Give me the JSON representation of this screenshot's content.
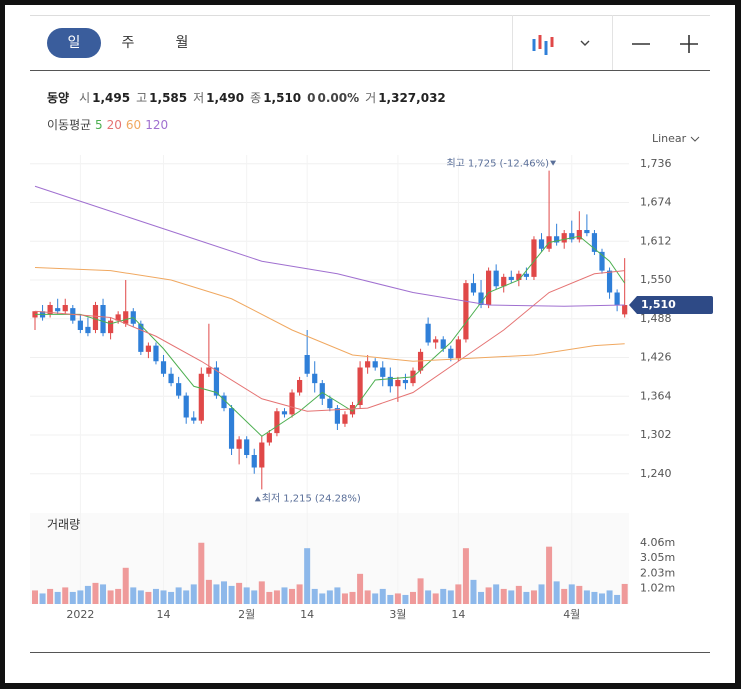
{
  "toolbar": {
    "tabs": [
      "일",
      "주",
      "월"
    ],
    "selected": 0
  },
  "info": {
    "name": "동양",
    "items": [
      {
        "label": "시",
        "value": "1,495"
      },
      {
        "label": "고",
        "value": "1,585"
      },
      {
        "label": "저",
        "value": "1,490"
      },
      {
        "label": "종",
        "value": "1,510"
      }
    ],
    "change": "0",
    "change_pct": "0.00%",
    "volume_label": "거",
    "volume": "1,327,032"
  },
  "ma_legend": "이동평균",
  "chart_data": {
    "type": "candlestick",
    "scale": "Linear",
    "volume_title": "거래량",
    "open": [
      1490,
      1500,
      1495,
      1505,
      1500,
      1505,
      1485,
      1475,
      1470,
      1510,
      1465,
      1485,
      1480,
      1500,
      1480,
      1435,
      1445,
      1420,
      1400,
      1385,
      1365,
      1330,
      1325,
      1400,
      1410,
      1365,
      1345,
      1280,
      1295,
      1270,
      1250,
      1290,
      1305,
      1340,
      1335,
      1370,
      1430,
      1400,
      1385,
      1360,
      1345,
      1320,
      1335,
      1350,
      1410,
      1420,
      1410,
      1395,
      1380,
      1390,
      1385,
      1405,
      1480,
      1450,
      1455,
      1440,
      1425,
      1455,
      1545,
      1530,
      1510,
      1565,
      1540,
      1555,
      1550,
      1560,
      1555,
      1615,
      1600,
      1620,
      1610,
      1625,
      1615,
      1630,
      1625,
      1595,
      1565,
      1530,
      1495
    ],
    "high": [
      1500,
      1510,
      1515,
      1520,
      1520,
      1510,
      1495,
      1490,
      1515,
      1520,
      1490,
      1500,
      1550,
      1505,
      1485,
      1450,
      1450,
      1430,
      1410,
      1395,
      1370,
      1340,
      1410,
      1480,
      1420,
      1370,
      1350,
      1300,
      1300,
      1280,
      1300,
      1310,
      1345,
      1345,
      1375,
      1395,
      1470,
      1420,
      1390,
      1365,
      1350,
      1340,
      1355,
      1420,
      1430,
      1425,
      1420,
      1410,
      1395,
      1400,
      1410,
      1440,
      1490,
      1460,
      1460,
      1445,
      1460,
      1550,
      1560,
      1550,
      1570,
      1575,
      1560,
      1565,
      1565,
      1570,
      1620,
      1625,
      1725,
      1640,
      1630,
      1645,
      1660,
      1655,
      1630,
      1600,
      1570,
      1535,
      1585
    ],
    "low": [
      1470,
      1485,
      1490,
      1495,
      1495,
      1480,
      1465,
      1460,
      1465,
      1460,
      1455,
      1480,
      1475,
      1475,
      1430,
      1425,
      1415,
      1395,
      1380,
      1360,
      1320,
      1320,
      1320,
      1395,
      1360,
      1340,
      1270,
      1255,
      1265,
      1240,
      1215,
      1285,
      1300,
      1330,
      1330,
      1365,
      1395,
      1370,
      1350,
      1340,
      1310,
      1315,
      1330,
      1345,
      1400,
      1405,
      1380,
      1370,
      1355,
      1375,
      1380,
      1400,
      1445,
      1440,
      1435,
      1420,
      1420,
      1450,
      1525,
      1505,
      1505,
      1535,
      1530,
      1545,
      1540,
      1550,
      1550,
      1595,
      1595,
      1605,
      1600,
      1610,
      1610,
      1620,
      1590,
      1560,
      1520,
      1500,
      1490
    ],
    "close": [
      1500,
      1490,
      1510,
      1500,
      1510,
      1485,
      1470,
      1465,
      1510,
      1465,
      1485,
      1495,
      1500,
      1480,
      1435,
      1445,
      1420,
      1400,
      1385,
      1365,
      1330,
      1325,
      1400,
      1410,
      1365,
      1345,
      1280,
      1295,
      1270,
      1250,
      1290,
      1305,
      1340,
      1335,
      1370,
      1390,
      1400,
      1385,
      1360,
      1345,
      1320,
      1335,
      1350,
      1410,
      1420,
      1410,
      1395,
      1380,
      1390,
      1385,
      1405,
      1435,
      1450,
      1455,
      1440,
      1425,
      1455,
      1545,
      1530,
      1510,
      1565,
      1540,
      1555,
      1550,
      1560,
      1555,
      1615,
      1600,
      1620,
      1610,
      1625,
      1615,
      1630,
      1625,
      1595,
      1565,
      1530,
      1510,
      1510
    ],
    "volume": [
      0.9,
      0.7,
      1.0,
      0.8,
      1.1,
      0.8,
      0.9,
      1.2,
      1.4,
      1.3,
      0.9,
      1.0,
      2.4,
      1.1,
      0.9,
      0.8,
      1.0,
      0.9,
      0.8,
      1.1,
      0.9,
      1.3,
      4.06,
      1.6,
      1.3,
      1.5,
      1.2,
      1.4,
      1.1,
      0.9,
      1.5,
      0.8,
      0.9,
      1.1,
      1.0,
      1.3,
      3.7,
      1.0,
      0.7,
      0.9,
      1.1,
      0.7,
      0.8,
      2.0,
      0.9,
      0.7,
      1.0,
      0.6,
      0.7,
      0.6,
      0.8,
      1.7,
      0.9,
      0.7,
      1.0,
      0.9,
      1.3,
      3.7,
      1.6,
      0.8,
      1.1,
      1.3,
      1.0,
      0.9,
      1.2,
      0.8,
      0.9,
      1.3,
      3.8,
      1.5,
      1.0,
      1.3,
      1.2,
      0.9,
      0.8,
      0.7,
      0.9,
      0.6,
      1.33
    ],
    "up_color": "#e04848",
    "down_color": "#2f7fd8",
    "up_volume_color": "#ef9a9a",
    "down_volume_color": "#8db8ea",
    "moving_averages": [
      {
        "name": "5",
        "color": "#4caf50",
        "x": [
          0,
          6,
          10,
          13,
          17,
          21,
          24,
          30,
          35,
          38,
          42,
          45,
          50,
          55,
          60,
          64,
          68,
          72,
          76,
          78
        ],
        "values": [
          1495,
          1495,
          1480,
          1490,
          1440,
          1380,
          1370,
          1300,
          1340,
          1370,
          1340,
          1390,
          1395,
          1450,
          1530,
          1550,
          1610,
          1620,
          1580,
          1545
        ]
      },
      {
        "name": "20",
        "color": "#e57373",
        "x": [
          0,
          10,
          16,
          22,
          30,
          36,
          44,
          50,
          56,
          62,
          68,
          74,
          78
        ],
        "values": [
          1500,
          1490,
          1460,
          1420,
          1360,
          1340,
          1345,
          1370,
          1420,
          1470,
          1530,
          1560,
          1565
        ]
      },
      {
        "name": "60",
        "color": "#f0a860",
        "x": [
          0,
          10,
          18,
          26,
          34,
          42,
          50,
          58,
          66,
          74,
          78
        ],
        "values": [
          1570,
          1565,
          1550,
          1520,
          1470,
          1430,
          1420,
          1425,
          1430,
          1445,
          1448
        ]
      },
      {
        "name": "120",
        "color": "#a070d0",
        "x": [
          0,
          10,
          20,
          30,
          40,
          50,
          60,
          70,
          78
        ],
        "values": [
          1700,
          1660,
          1620,
          1580,
          1560,
          1530,
          1510,
          1508,
          1510
        ]
      }
    ],
    "ylim": [
      1190,
      1758
    ],
    "yticks": [
      {
        "value": 1736,
        "label": "1,736"
      },
      {
        "value": 1674,
        "label": "1,674"
      },
      {
        "value": 1612,
        "label": "1,612"
      },
      {
        "value": 1550,
        "label": "1,550"
      },
      {
        "value": 1488,
        "label": "1,488"
      },
      {
        "value": 1426,
        "label": "1,426"
      },
      {
        "value": 1364,
        "label": "1,364"
      },
      {
        "value": 1302,
        "label": "1,302"
      },
      {
        "value": 1240,
        "label": "1,240"
      }
    ],
    "volume_ylim": [
      0,
      5.9
    ],
    "volume_ticks": [
      {
        "value": 4.06,
        "label": "4.06m"
      },
      {
        "value": 3.05,
        "label": "3.05m"
      },
      {
        "value": 2.03,
        "label": "2.03m"
      },
      {
        "value": 1.02,
        "label": "1.02m"
      }
    ],
    "xticks": [
      {
        "value": 6,
        "label": "2022"
      },
      {
        "value": 17,
        "label": "14"
      },
      {
        "value": 28,
        "label": "2월"
      },
      {
        "value": 36,
        "label": "14"
      },
      {
        "value": 48,
        "label": "3월"
      },
      {
        "value": 56,
        "label": "14"
      },
      {
        "value": 71,
        "label": "4월"
      }
    ],
    "high_marker": {
      "label": "최고",
      "index": 68,
      "value": 1725,
      "value_label": "1,725",
      "change": "(-12.46%)"
    },
    "low_marker": {
      "label": "최저",
      "index": 30,
      "value": 1215,
      "value_label": "1,215",
      "change": "(24.28%)"
    },
    "last_price": {
      "value": 1510,
      "label": "1,510"
    }
  }
}
